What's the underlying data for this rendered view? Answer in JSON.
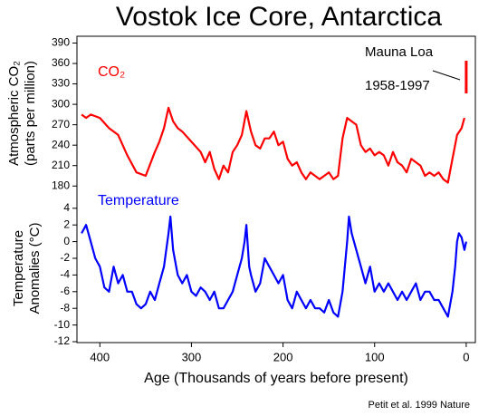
{
  "chart_data": [
    {
      "type": "line",
      "title": "Vostok Ice Core, Antarctica",
      "ylabel": [
        "Atmospheric CO₂",
        "(parts per million)"
      ],
      "xlim": [
        425,
        -10
      ],
      "ylim": [
        175,
        400
      ],
      "yticks": [
        180,
        210,
        240,
        270,
        300,
        330,
        360,
        390
      ],
      "annotations": [
        "Mauna Loa",
        "1958-1997"
      ],
      "series": [
        {
          "name": "CO₂",
          "color": "#ff0000",
          "x": [
            420,
            415,
            410,
            400,
            390,
            380,
            370,
            360,
            350,
            340,
            335,
            330,
            325,
            320,
            315,
            310,
            300,
            290,
            285,
            280,
            275,
            270,
            265,
            260,
            255,
            250,
            245,
            240,
            235,
            230,
            225,
            220,
            215,
            210,
            205,
            200,
            195,
            190,
            185,
            180,
            175,
            170,
            165,
            160,
            155,
            150,
            145,
            140,
            135,
            130,
            125,
            120,
            115,
            110,
            105,
            100,
            95,
            90,
            85,
            80,
            75,
            70,
            65,
            60,
            55,
            50,
            45,
            40,
            35,
            30,
            25,
            20,
            15,
            10,
            5,
            2
          ],
          "values": [
            285,
            280,
            285,
            280,
            265,
            255,
            225,
            200,
            195,
            230,
            245,
            265,
            295,
            275,
            265,
            260,
            245,
            230,
            215,
            230,
            205,
            190,
            210,
            200,
            230,
            240,
            255,
            290,
            260,
            240,
            235,
            250,
            250,
            260,
            240,
            245,
            220,
            210,
            215,
            200,
            190,
            200,
            195,
            190,
            195,
            200,
            190,
            195,
            250,
            280,
            275,
            270,
            240,
            230,
            235,
            225,
            230,
            225,
            210,
            230,
            215,
            210,
            200,
            220,
            215,
            210,
            195,
            200,
            195,
            200,
            190,
            185,
            220,
            255,
            265,
            280
          ]
        },
        {
          "name": "Mauna Loa",
          "color": "#ff0000",
          "x": [
            0,
            0
          ],
          "values": [
            316,
            364
          ]
        }
      ]
    },
    {
      "type": "line",
      "ylabel": [
        "Temperature",
        "Anomalies (°C)"
      ],
      "xlabel": "Age (Thousands of years before present)",
      "xlim": [
        425,
        -10
      ],
      "xticks": [
        400,
        300,
        200,
        100,
        0
      ],
      "ylim": [
        -12,
        5.5
      ],
      "yticks": [
        -12,
        -10,
        -8,
        -6,
        -4,
        -2,
        0,
        2,
        4
      ],
      "annotations": [
        "Petit et al. 1999 Nature"
      ],
      "series": [
        {
          "name": "Temperature",
          "color": "#0000ff",
          "x": [
            420,
            415,
            410,
            405,
            400,
            395,
            390,
            385,
            380,
            375,
            370,
            365,
            360,
            355,
            350,
            345,
            340,
            335,
            330,
            325,
            323,
            320,
            315,
            310,
            305,
            300,
            295,
            290,
            285,
            280,
            275,
            270,
            265,
            260,
            255,
            250,
            245,
            242,
            240,
            237,
            235,
            230,
            225,
            220,
            215,
            210,
            205,
            200,
            195,
            190,
            185,
            180,
            175,
            170,
            165,
            160,
            155,
            150,
            145,
            140,
            135,
            130,
            128,
            125,
            120,
            115,
            110,
            105,
            100,
            95,
            90,
            85,
            80,
            75,
            70,
            65,
            60,
            55,
            50,
            45,
            40,
            35,
            30,
            25,
            20,
            15,
            12,
            10,
            8,
            5,
            2,
            0
          ],
          "values": [
            1,
            2,
            0,
            -2,
            -3,
            -5.5,
            -6,
            -3,
            -5,
            -4,
            -6,
            -6,
            -7.5,
            -8,
            -7.5,
            -6,
            -7,
            -5,
            -3,
            1,
            3,
            -1,
            -4,
            -5,
            -4,
            -6,
            -6.5,
            -5.5,
            -6,
            -7,
            -6,
            -8,
            -8,
            -7,
            -6,
            -4,
            -2,
            0,
            2,
            -3,
            -4,
            -6,
            -5,
            -2,
            -3,
            -4,
            -5,
            -4,
            -7,
            -8,
            -6,
            -7,
            -8,
            -7,
            -8,
            -8,
            -8.5,
            -7,
            -8.5,
            -9,
            -6,
            0,
            3,
            1,
            -1,
            -3,
            -5,
            -3,
            -6,
            -5,
            -6,
            -5,
            -6,
            -7,
            -6,
            -7,
            -6,
            -5,
            -7,
            -6,
            -6,
            -7,
            -7,
            -8,
            -9,
            -6,
            -3,
            0,
            1,
            0.5,
            -1,
            0
          ]
        }
      ]
    }
  ]
}
